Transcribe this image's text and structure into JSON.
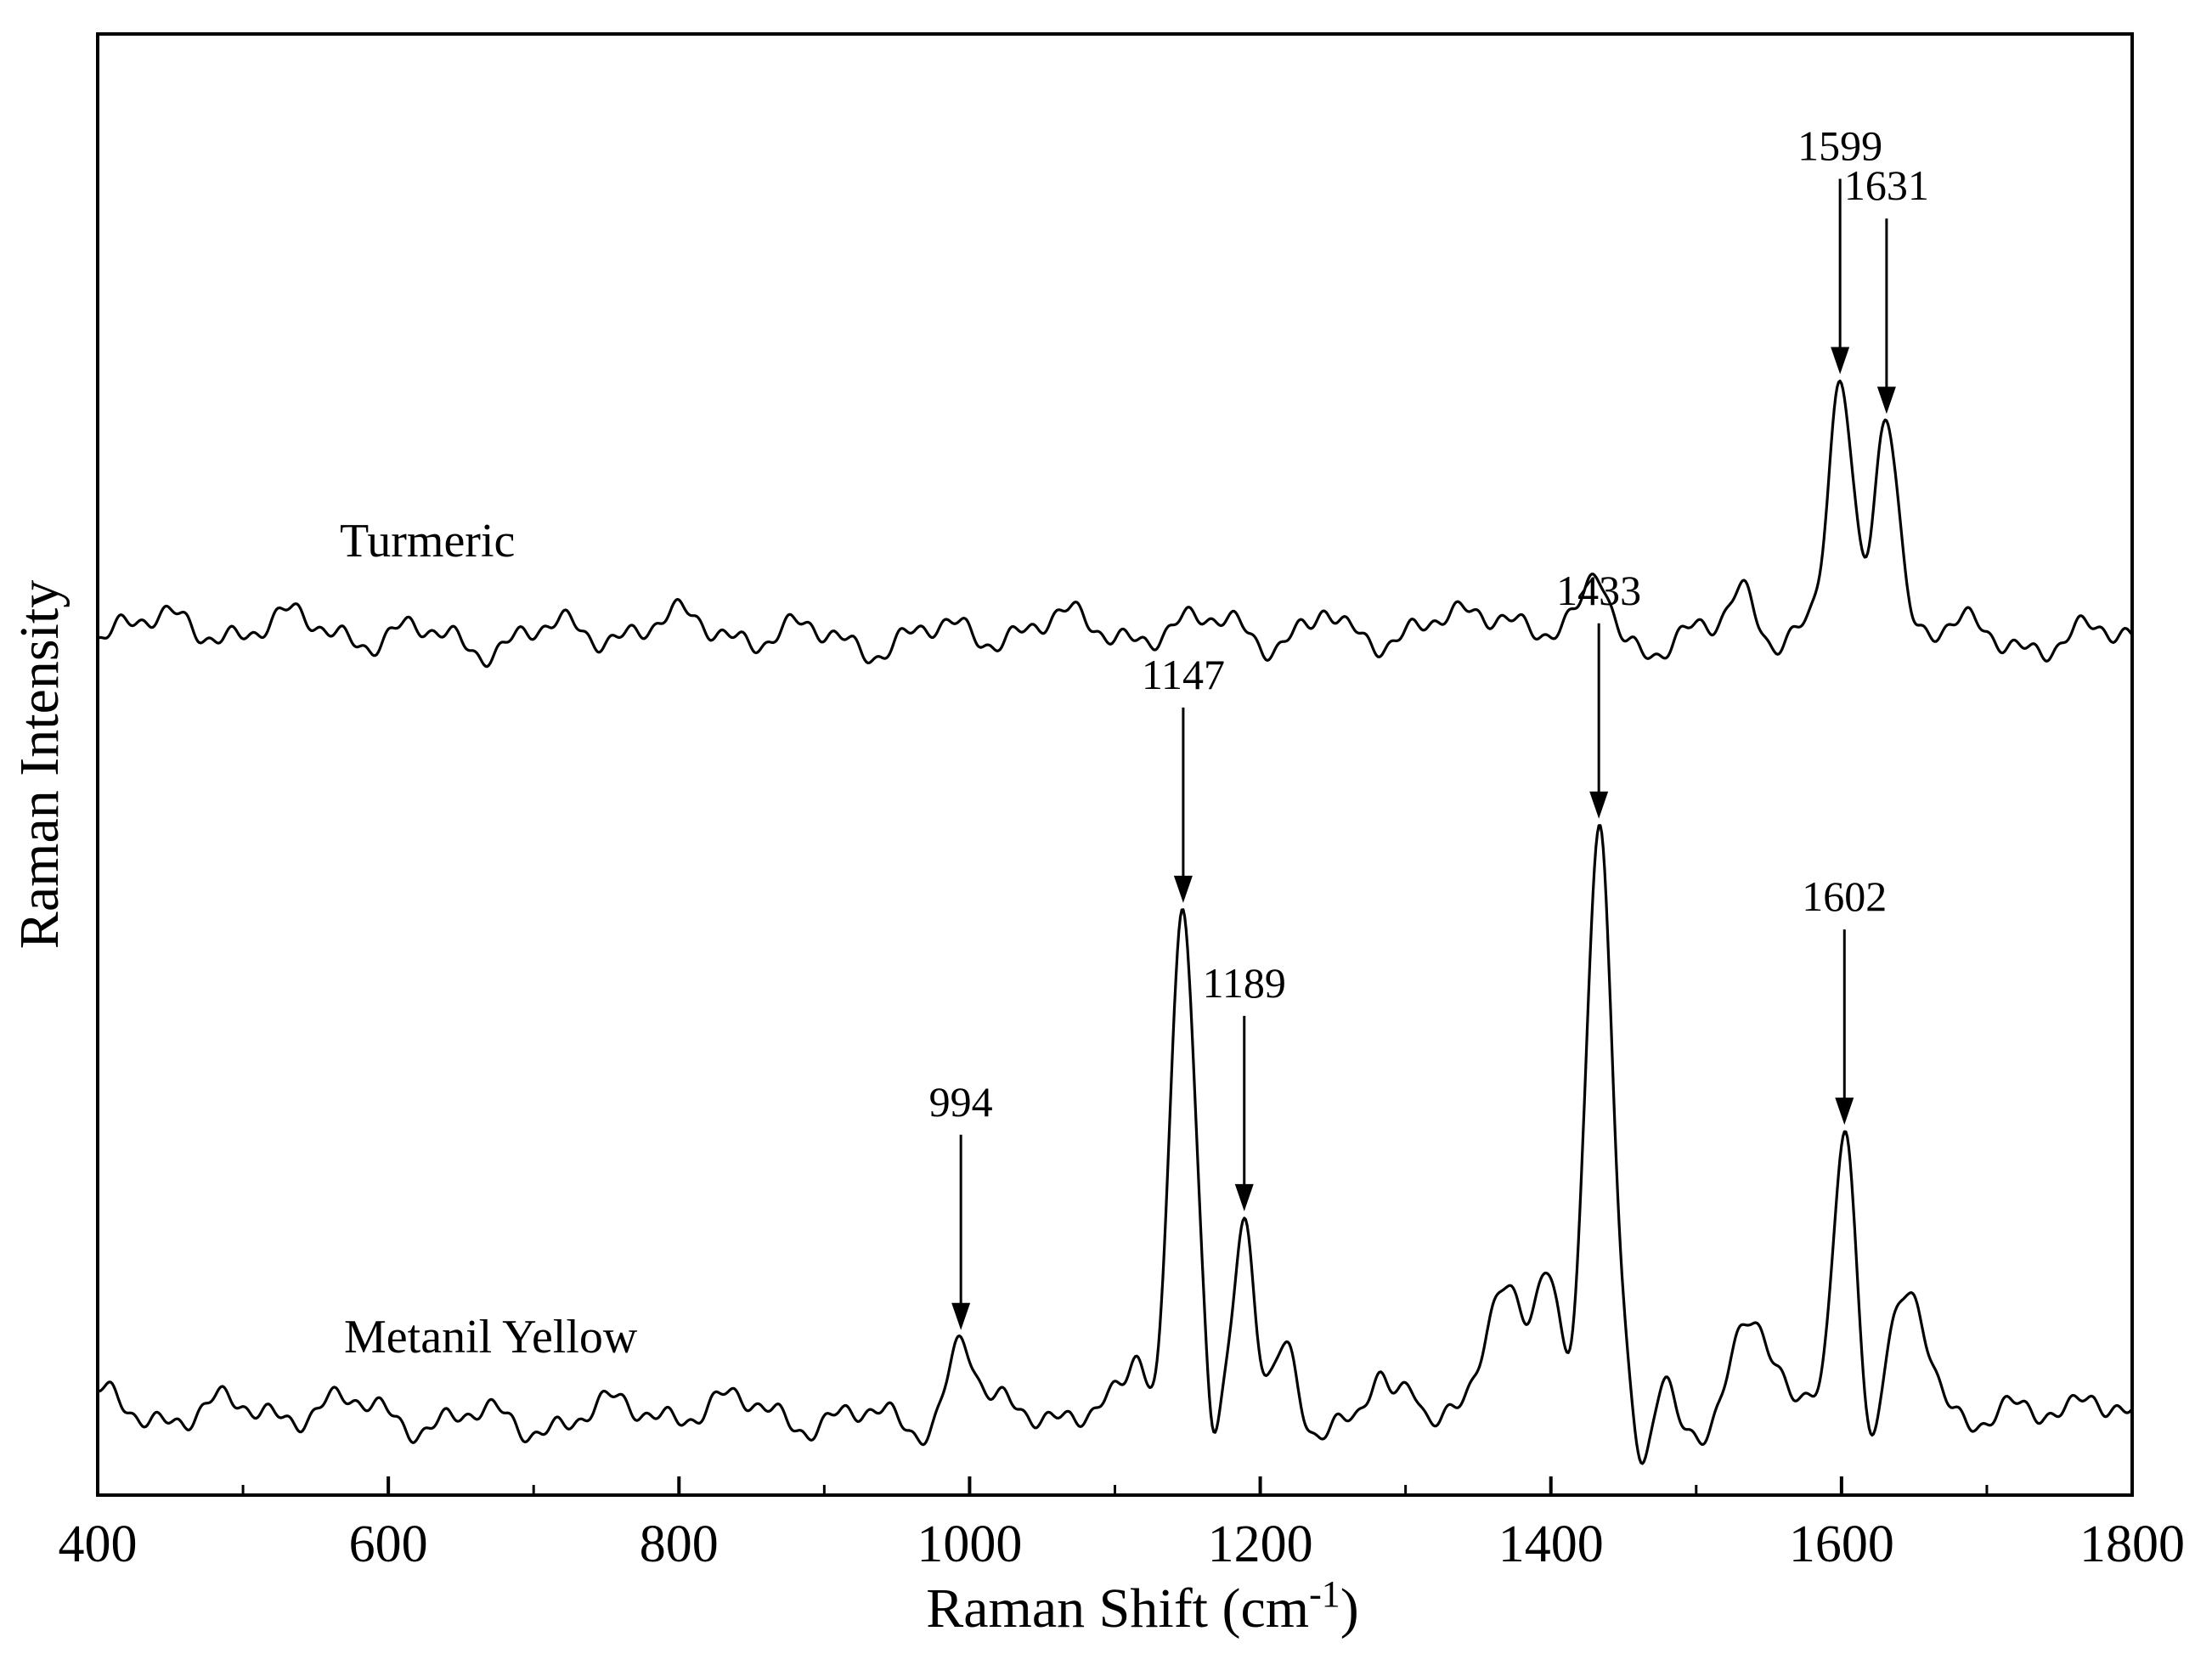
{
  "chart_data": {
    "type": "line",
    "title": "",
    "xlabel": "Raman Shift (cm",
    "xlabel_sup": "-1",
    "xlabel_close": ")",
    "ylabel": "Raman Intensity",
    "xlim": [
      400,
      1800
    ],
    "ylim": [
      0,
      100
    ],
    "x_ticks": [
      400,
      600,
      800,
      1000,
      1200,
      1400,
      1600,
      1800
    ],
    "x_tick_labels": [
      "400",
      "600",
      "800",
      "1000",
      "1200",
      "1400",
      "1600",
      "1800"
    ],
    "minor_x_ticks": [
      500,
      700,
      900,
      1100,
      1300,
      1500,
      1700
    ],
    "y_ticks_shown": false,
    "grid": false,
    "legend": "none",
    "series": [
      {
        "name": "Turmeric",
        "baseline": 59.0,
        "peaks": [
          {
            "x": 1433,
            "h": 4.0,
            "w": 8
          },
          {
            "x": 1532,
            "h": 3.0,
            "w": 9
          },
          {
            "x": 1599,
            "h": 16.0,
            "w": 8
          },
          {
            "x": 1631,
            "h": 15.5,
            "w": 8
          },
          {
            "x": 1180,
            "h": 1.5,
            "w": 15
          },
          {
            "x": 1368,
            "h": 1.5,
            "w": 12
          },
          {
            "x": 1245,
            "h": 1.2,
            "w": 6
          }
        ],
        "annotations": [
          {
            "x": 1599,
            "label": "1599"
          },
          {
            "x": 1631,
            "label": "1631"
          }
        ]
      },
      {
        "name": "Metanil Yellow",
        "baseline": 5.5,
        "peaks": [
          {
            "x": 994,
            "h": 5.5,
            "w": 9
          },
          {
            "x": 1116,
            "h": 3.0,
            "w": 6
          },
          {
            "x": 1147,
            "h": 35.0,
            "w": 9
          },
          {
            "x": 1189,
            "h": 13.0,
            "w": 7
          },
          {
            "x": 1218,
            "h": 5.0,
            "w": 8
          },
          {
            "x": 1280,
            "h": 2.0,
            "w": 6
          },
          {
            "x": 1305,
            "h": 1.8,
            "w": 6
          },
          {
            "x": 1368,
            "h": 7.0,
            "w": 15
          },
          {
            "x": 1398,
            "h": 9.0,
            "w": 8
          },
          {
            "x": 1433,
            "h": 41.0,
            "w": 9
          },
          {
            "x": 1478,
            "h": 2.5,
            "w": 5
          },
          {
            "x": 1537,
            "h": 6.5,
            "w": 13
          },
          {
            "x": 1580,
            "h": 2.0,
            "w": 6
          },
          {
            "x": 1602,
            "h": 19.0,
            "w": 8
          },
          {
            "x": 1648,
            "h": 7.0,
            "w": 13
          },
          {
            "x": 1770,
            "h": 3.0,
            "w": 10
          }
        ],
        "dips": [
          {
            "x": 1167,
            "h": -3.0,
            "w": 4
          },
          {
            "x": 1463,
            "h": -3.5,
            "w": 5
          },
          {
            "x": 1620,
            "h": -4.0,
            "w": 5
          },
          {
            "x": 1130,
            "h": -2.0,
            "w": 4
          }
        ],
        "annotations": [
          {
            "x": 994,
            "label": "994"
          },
          {
            "x": 1147,
            "label": "1147"
          },
          {
            "x": 1189,
            "label": "1189"
          },
          {
            "x": 1433,
            "label": "1433"
          },
          {
            "x": 1602,
            "label": "1602"
          }
        ]
      }
    ]
  }
}
